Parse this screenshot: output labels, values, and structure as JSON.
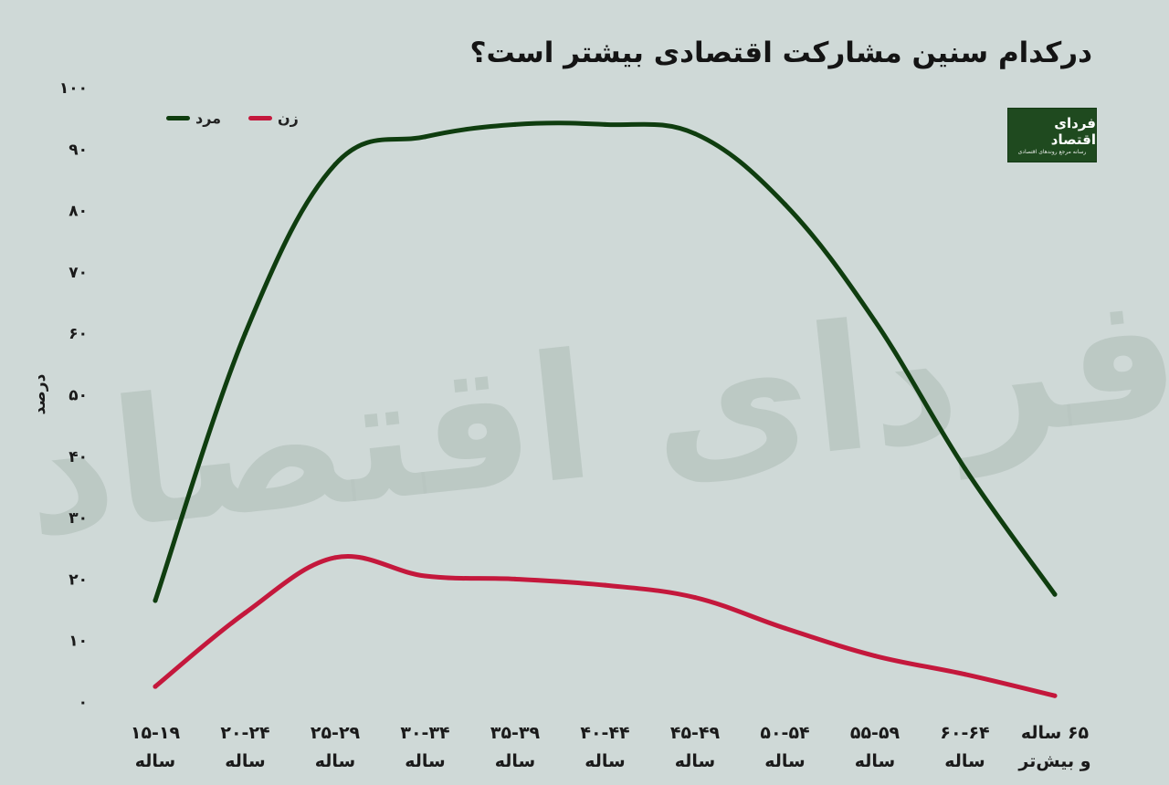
{
  "title": "درکدام سنین مشارکت اقتصادی بیشتر است؟",
  "logo": {
    "name": "فردای اقتصاد",
    "tagline": "رسانه مرجع روندهای اقتصادی"
  },
  "watermark": "فردای اقتصاد",
  "colors": {
    "background": "#cfd9d7",
    "men": "#0f3d0f",
    "women": "#c4183c",
    "watermark": "#b9c5c1"
  },
  "chart_data": {
    "type": "line",
    "ylabel": "درصد",
    "xlabel": "",
    "ylim": [
      0,
      100
    ],
    "yticks": [
      "۰",
      "۱۰",
      "۲۰",
      "۳۰",
      "۴۰",
      "۵۰",
      "۶۰",
      "۷۰",
      "۸۰",
      "۹۰",
      "۱۰۰"
    ],
    "grid": false,
    "legend_position": "top-left",
    "categories": [
      "۱۵-۱۹ ساله",
      "۲۰-۲۴ ساله",
      "۲۵-۲۹ ساله",
      "۳۰-۳۴ ساله",
      "۳۵-۳۹ ساله",
      "۴۰-۴۴ ساله",
      "۴۵-۴۹ ساله",
      "۵۰-۵۴ ساله",
      "۵۵-۵۹ ساله",
      "۶۰-۶۴ ساله",
      "۶۵ ساله و بیش‌تر"
    ],
    "series": [
      {
        "name": "مرد",
        "color": "#0f3d0f",
        "values": [
          16.5,
          60,
          87.5,
          92,
          94,
          94,
          92.5,
          81,
          62,
          38,
          17.5
        ]
      },
      {
        "name": "زن",
        "color": "#c4183c",
        "values": [
          2.5,
          14.5,
          23.5,
          20.5,
          20,
          19,
          17,
          12,
          7.5,
          4.5,
          1
        ]
      }
    ]
  }
}
